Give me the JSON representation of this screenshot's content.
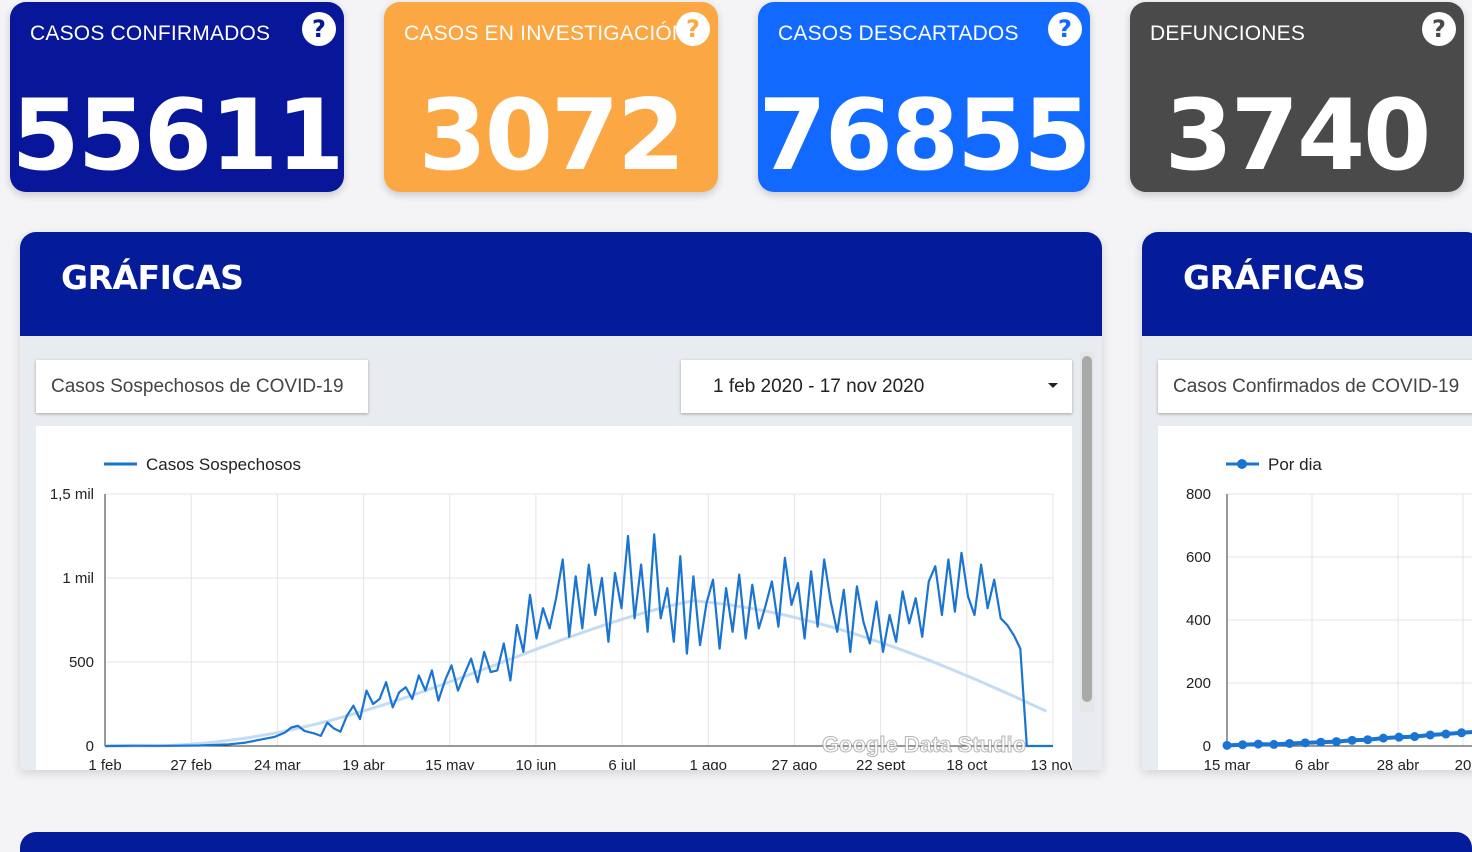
{
  "cards": [
    {
      "title": "CASOS CONFIRMADOS",
      "value": "55611",
      "color": "#08179a",
      "help": "?"
    },
    {
      "title": "CASOS EN INVESTIGACIÓN",
      "value": "3072",
      "color": "#fba744",
      "help": "?"
    },
    {
      "title": "CASOS DESCARTADOS",
      "value": "76855",
      "color": "#1169ff",
      "help": "?"
    },
    {
      "title": "DEFUNCIONES",
      "value": "3740",
      "color": "#4a4a4a",
      "help": "?"
    }
  ],
  "panels": [
    {
      "title": "GRÁFICAS",
      "selector": "Casos Sospechosos de COVID-19",
      "date_range": "1 feb 2020 - 17 nov 2020"
    },
    {
      "title": "GRÁFICAS",
      "selector": "Casos Confirmados de COVID-19"
    }
  ],
  "watermark": "Google Data Studio",
  "chart_data": [
    {
      "type": "line",
      "legend": [
        "Casos Sospechosos"
      ],
      "series_color": "#1a74d2",
      "trend_color": "#c4dcf3",
      "x_ticks": [
        "1 feb",
        "27 feb",
        "24 mar",
        "19 abr",
        "15 may",
        "10 jun",
        "6 jul",
        "1 ago",
        "27 ago",
        "22 sept",
        "18 oct",
        "13 nov"
      ],
      "y_ticks": [
        "0",
        "500",
        "1 mil",
        "1,5 mil"
      ],
      "ylim": [
        0,
        1500
      ],
      "x_range": [
        "2020-02-01",
        "2020-11-17"
      ],
      "series": [
        {
          "name": "Casos Sospechosos",
          "x": [
            "2020-02-01",
            "2020-02-10",
            "2020-02-20",
            "2020-03-01",
            "2020-03-10",
            "2020-03-15",
            "2020-03-20",
            "2020-03-24",
            "2020-03-27",
            "2020-03-29",
            "2020-03-31",
            "2020-04-02",
            "2020-04-05",
            "2020-04-07",
            "2020-04-09",
            "2020-04-11",
            "2020-04-13",
            "2020-04-15",
            "2020-04-17",
            "2020-04-19",
            "2020-04-21",
            "2020-04-23",
            "2020-04-25",
            "2020-04-27",
            "2020-04-29",
            "2020-05-01",
            "2020-05-03",
            "2020-05-05",
            "2020-05-07",
            "2020-05-09",
            "2020-05-11",
            "2020-05-13",
            "2020-05-15",
            "2020-05-17",
            "2020-05-19",
            "2020-05-21",
            "2020-05-23",
            "2020-05-25",
            "2020-05-27",
            "2020-05-29",
            "2020-05-31",
            "2020-06-02",
            "2020-06-04",
            "2020-06-06",
            "2020-06-08",
            "2020-06-10",
            "2020-06-12",
            "2020-06-14",
            "2020-06-16",
            "2020-06-18",
            "2020-06-20",
            "2020-06-22",
            "2020-06-24",
            "2020-06-26",
            "2020-06-28",
            "2020-06-30",
            "2020-07-02",
            "2020-07-04",
            "2020-07-06",
            "2020-07-08",
            "2020-07-10",
            "2020-07-12",
            "2020-07-14",
            "2020-07-16",
            "2020-07-18",
            "2020-07-20",
            "2020-07-22",
            "2020-07-24",
            "2020-07-26",
            "2020-07-28",
            "2020-07-30",
            "2020-08-01",
            "2020-08-03",
            "2020-08-05",
            "2020-08-07",
            "2020-08-09",
            "2020-08-11",
            "2020-08-13",
            "2020-08-15",
            "2020-08-17",
            "2020-08-19",
            "2020-08-21",
            "2020-08-23",
            "2020-08-25",
            "2020-08-27",
            "2020-08-29",
            "2020-08-31",
            "2020-09-02",
            "2020-09-04",
            "2020-09-06",
            "2020-09-08",
            "2020-09-10",
            "2020-09-12",
            "2020-09-14",
            "2020-09-16",
            "2020-09-18",
            "2020-09-20",
            "2020-09-22",
            "2020-09-24",
            "2020-09-26",
            "2020-09-28",
            "2020-09-30",
            "2020-10-02",
            "2020-10-04",
            "2020-10-06",
            "2020-10-08",
            "2020-10-10",
            "2020-10-12",
            "2020-10-14",
            "2020-10-16",
            "2020-10-18",
            "2020-10-20",
            "2020-10-22",
            "2020-10-24",
            "2020-10-26",
            "2020-10-28",
            "2020-10-30",
            "2020-11-01",
            "2020-11-03",
            "2020-11-05",
            "2020-11-07",
            "2020-11-09",
            "2020-11-11",
            "2020-11-13",
            "2020-11-15",
            "2020-11-17"
          ],
          "y": [
            0,
            2,
            1,
            3,
            10,
            20,
            40,
            55,
            80,
            110,
            120,
            90,
            75,
            60,
            140,
            105,
            85,
            180,
            240,
            160,
            330,
            250,
            280,
            380,
            230,
            320,
            350,
            280,
            420,
            330,
            450,
            270,
            390,
            480,
            330,
            430,
            520,
            380,
            560,
            440,
            450,
            610,
            390,
            720,
            560,
            900,
            640,
            820,
            700,
            880,
            1110,
            650,
            1010,
            700,
            1080,
            780,
            1000,
            620,
            1030,
            820,
            1250,
            760,
            1080,
            680,
            1260,
            760,
            940,
            620,
            1130,
            550,
            1010,
            600,
            850,
            990,
            580,
            940,
            680,
            1020,
            640,
            960,
            700,
            830,
            980,
            710,
            1120,
            840,
            970,
            640,
            1040,
            710,
            1110,
            860,
            680,
            930,
            560,
            950,
            740,
            610,
            860,
            560,
            780,
            620,
            920,
            730,
            880,
            650,
            980,
            1070,
            780,
            1110,
            800,
            1150,
            890,
            780,
            1080,
            820,
            990,
            760,
            720,
            660,
            580,
            0,
            0,
            0,
            0,
            0
          ]
        }
      ]
    },
    {
      "type": "line",
      "legend": [
        "Por dia"
      ],
      "series_color": "#1a74d2",
      "x_ticks": [
        "15 mar",
        "6 abr",
        "28 abr",
        "20"
      ],
      "y_ticks": [
        "0",
        "200",
        "400",
        "600",
        "800"
      ],
      "ylim": [
        0,
        800
      ],
      "series": [
        {
          "name": "Por dia",
          "x": [
            "2020-03-15",
            "2020-03-19",
            "2020-03-23",
            "2020-03-27",
            "2020-03-31",
            "2020-04-04",
            "2020-04-08",
            "2020-04-12",
            "2020-04-16",
            "2020-04-20",
            "2020-04-24",
            "2020-04-28",
            "2020-05-02",
            "2020-05-06",
            "2020-05-10",
            "2020-05-14",
            "2020-05-18",
            "2020-05-20"
          ],
          "y": [
            2,
            4,
            6,
            5,
            8,
            10,
            12,
            14,
            18,
            20,
            25,
            28,
            30,
            35,
            38,
            42,
            45,
            50
          ]
        }
      ]
    }
  ]
}
